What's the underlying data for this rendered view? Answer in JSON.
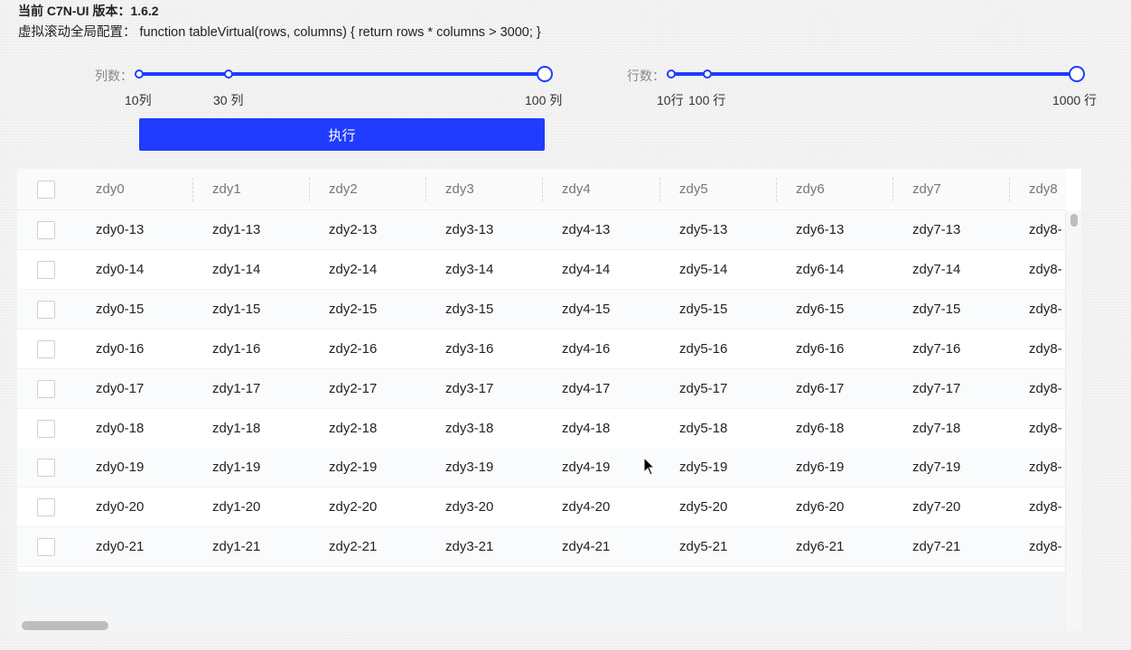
{
  "header": {
    "version_line": "当前 C7N-UI 版本：1.6.2",
    "config_line": "虚拟滚动全局配置：  function tableVirtual(rows, columns) { return rows * columns > 3000; }"
  },
  "column_slider": {
    "label": "列数：",
    "value_label": "100 列",
    "marks": [
      "10列",
      "30 列",
      "100 列"
    ],
    "selected_fraction": 1.0
  },
  "row_slider": {
    "label": "行数：",
    "marks": [
      "10行",
      "100 行",
      "1000 行"
    ],
    "selected_fraction": 1.0
  },
  "execute_button": {
    "label": "执行"
  },
  "table": {
    "columns": [
      "zdy0",
      "zdy1",
      "zdy2",
      "zdy3",
      "zdy4",
      "zdy5",
      "zdy6",
      "zdy7",
      "zdy8"
    ],
    "rows": [
      [
        "zdy0-13",
        "zdy1-13",
        "zdy2-13",
        "zdy3-13",
        "zdy4-13",
        "zdy5-13",
        "zdy6-13",
        "zdy7-13",
        "zdy8-"
      ],
      [
        "zdy0-14",
        "zdy1-14",
        "zdy2-14",
        "zdy3-14",
        "zdy4-14",
        "zdy5-14",
        "zdy6-14",
        "zdy7-14",
        "zdy8-"
      ],
      [
        "zdy0-15",
        "zdy1-15",
        "zdy2-15",
        "zdy3-15",
        "zdy4-15",
        "zdy5-15",
        "zdy6-15",
        "zdy7-15",
        "zdy8-"
      ],
      [
        "zdy0-16",
        "zdy1-16",
        "zdy2-16",
        "zdy3-16",
        "zdy4-16",
        "zdy5-16",
        "zdy6-16",
        "zdy7-16",
        "zdy8-"
      ],
      [
        "zdy0-17",
        "zdy1-17",
        "zdy2-17",
        "zdy3-17",
        "zdy4-17",
        "zdy5-17",
        "zdy6-17",
        "zdy7-17",
        "zdy8-"
      ],
      [
        "zdy0-18",
        "zdy1-18",
        "zdy2-18",
        "zdy3-18",
        "zdy4-18",
        "zdy5-18",
        "zdy6-18",
        "zdy7-18",
        "zdy8-"
      ],
      [
        "zdy0-19",
        "zdy1-19",
        "zdy2-19",
        "zdy3-19",
        "zdy4-19",
        "zdy5-19",
        "zdy6-19",
        "zdy7-19",
        "zdy8-"
      ],
      [
        "zdy0-20",
        "zdy1-20",
        "zdy2-20",
        "zdy3-20",
        "zdy4-20",
        "zdy5-20",
        "zdy6-20",
        "zdy7-20",
        "zdy8-"
      ],
      [
        "zdy0-21",
        "zdy1-21",
        "zdy2-21",
        "zdy3-21",
        "zdy4-21",
        "zdy5-21",
        "zdy6-21",
        "zdy7-21",
        "zdy8-"
      ]
    ]
  },
  "colors": {
    "accent": "#1f3cff",
    "button_text": "#ffffff",
    "header_text": "#777777"
  },
  "icons": {
    "cursor": "mouse-pointer-icon",
    "checkbox": "checkbox-icon"
  }
}
